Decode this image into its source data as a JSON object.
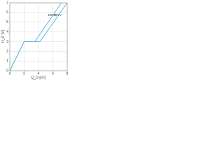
{
  "chart_data": {
    "type": "line",
    "x_label": "Q_G [nC]",
    "y_label": "U_G [V]",
    "series": [
      {
        "name": "100 V",
        "color": "#5ab4dc",
        "x": [
          0,
          2,
          3.5,
          7.2
        ],
        "values": [
          0,
          3,
          3,
          7
        ]
      },
      {
        "name": "400 V",
        "color": "#5ab4dc",
        "x": [
          0,
          2,
          4.2,
          8
        ],
        "values": [
          0,
          3,
          3,
          7
        ]
      }
    ],
    "xlim": [
      0,
      8
    ],
    "xticks": [
      0,
      2,
      4,
      6,
      8
    ],
    "ylim": [
      0,
      7
    ],
    "yticks": [
      0,
      1,
      2,
      3,
      4,
      5,
      6,
      7
    ],
    "grid": true
  }
}
